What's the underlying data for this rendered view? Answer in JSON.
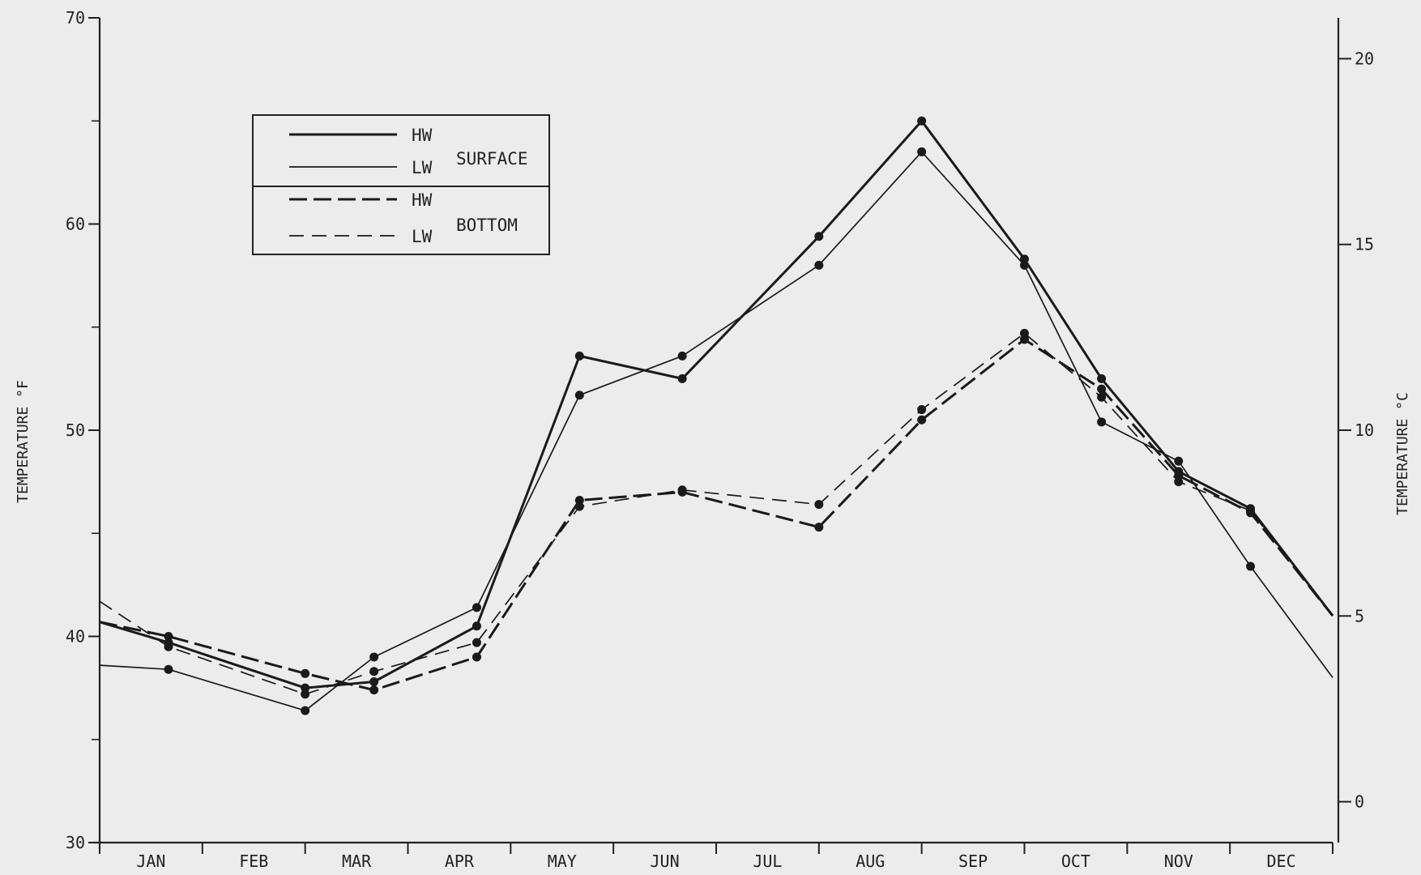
{
  "chart_data": {
    "type": "line",
    "title": "",
    "xlabel": "",
    "ylabel": "TEMPERATURE °F",
    "y2label": "TEMPERATURE °C",
    "ylim": [
      30,
      70
    ],
    "y2lim": [
      -1.1,
      21.1
    ],
    "y_ticks": [
      30,
      40,
      50,
      60,
      70
    ],
    "y2_ticks": [
      0,
      5,
      10,
      15,
      20
    ],
    "x_tick_labels": [
      "JAN",
      "FEB",
      "MAR",
      "APR",
      "MAY",
      "JUN",
      "JUL",
      "AUG",
      "SEP",
      "OCT",
      "NOV",
      "DEC"
    ],
    "xlim": [
      0,
      12
    ],
    "grid": false,
    "legend": {
      "placement": "upper-left",
      "groups": [
        {
          "label": "SURFACE",
          "entries": [
            "HW",
            "LW"
          ]
        },
        {
          "label": "BOTTOM",
          "entries": [
            "HW",
            "LW"
          ]
        }
      ]
    },
    "series": [
      {
        "name": "HW",
        "group": "SURFACE",
        "style": "solid-heavy",
        "x": [
          0,
          0.67,
          2.0,
          2.67,
          3.67,
          4.67,
          5.67,
          7.0,
          8.0,
          9.0,
          9.75,
          10.5,
          11.2,
          12.0
        ],
        "y": [
          40.7,
          39.7,
          37.5,
          37.8,
          40.5,
          53.6,
          52.5,
          59.4,
          65.0,
          58.3,
          52.5,
          48.0,
          46.2,
          41.0
        ]
      },
      {
        "name": "LW",
        "group": "SURFACE",
        "style": "solid-light",
        "x": [
          0,
          0.67,
          2.0,
          2.67,
          3.67,
          4.67,
          5.67,
          7.0,
          8.0,
          9.0,
          9.75,
          10.5,
          11.2,
          12.0
        ],
        "y": [
          38.6,
          38.4,
          36.4,
          39.0,
          41.4,
          51.7,
          53.6,
          58.0,
          63.5,
          58.0,
          50.4,
          48.5,
          43.4,
          38.0
        ]
      },
      {
        "name": "HW",
        "group": "BOTTOM",
        "style": "dash-heavy",
        "x": [
          0,
          0.67,
          2.0,
          2.67,
          3.67,
          4.67,
          5.67,
          7.0,
          8.0,
          9.0,
          9.75,
          10.5,
          11.2,
          12.0
        ],
        "y": [
          40.7,
          40.0,
          38.2,
          37.4,
          39.0,
          46.6,
          47.0,
          45.3,
          50.5,
          54.4,
          52.0,
          47.8,
          46.0,
          41.0
        ]
      },
      {
        "name": "LW",
        "group": "BOTTOM",
        "style": "dash-light",
        "x": [
          0,
          0.67,
          2.0,
          2.67,
          3.67,
          4.67,
          5.67,
          7.0,
          8.0,
          9.0,
          9.75,
          10.5,
          11.2,
          12.0
        ],
        "y": [
          41.7,
          39.5,
          37.2,
          38.3,
          39.7,
          46.3,
          47.1,
          46.4,
          51.0,
          54.7,
          51.6,
          47.5,
          46.1,
          41.0
        ]
      }
    ]
  }
}
